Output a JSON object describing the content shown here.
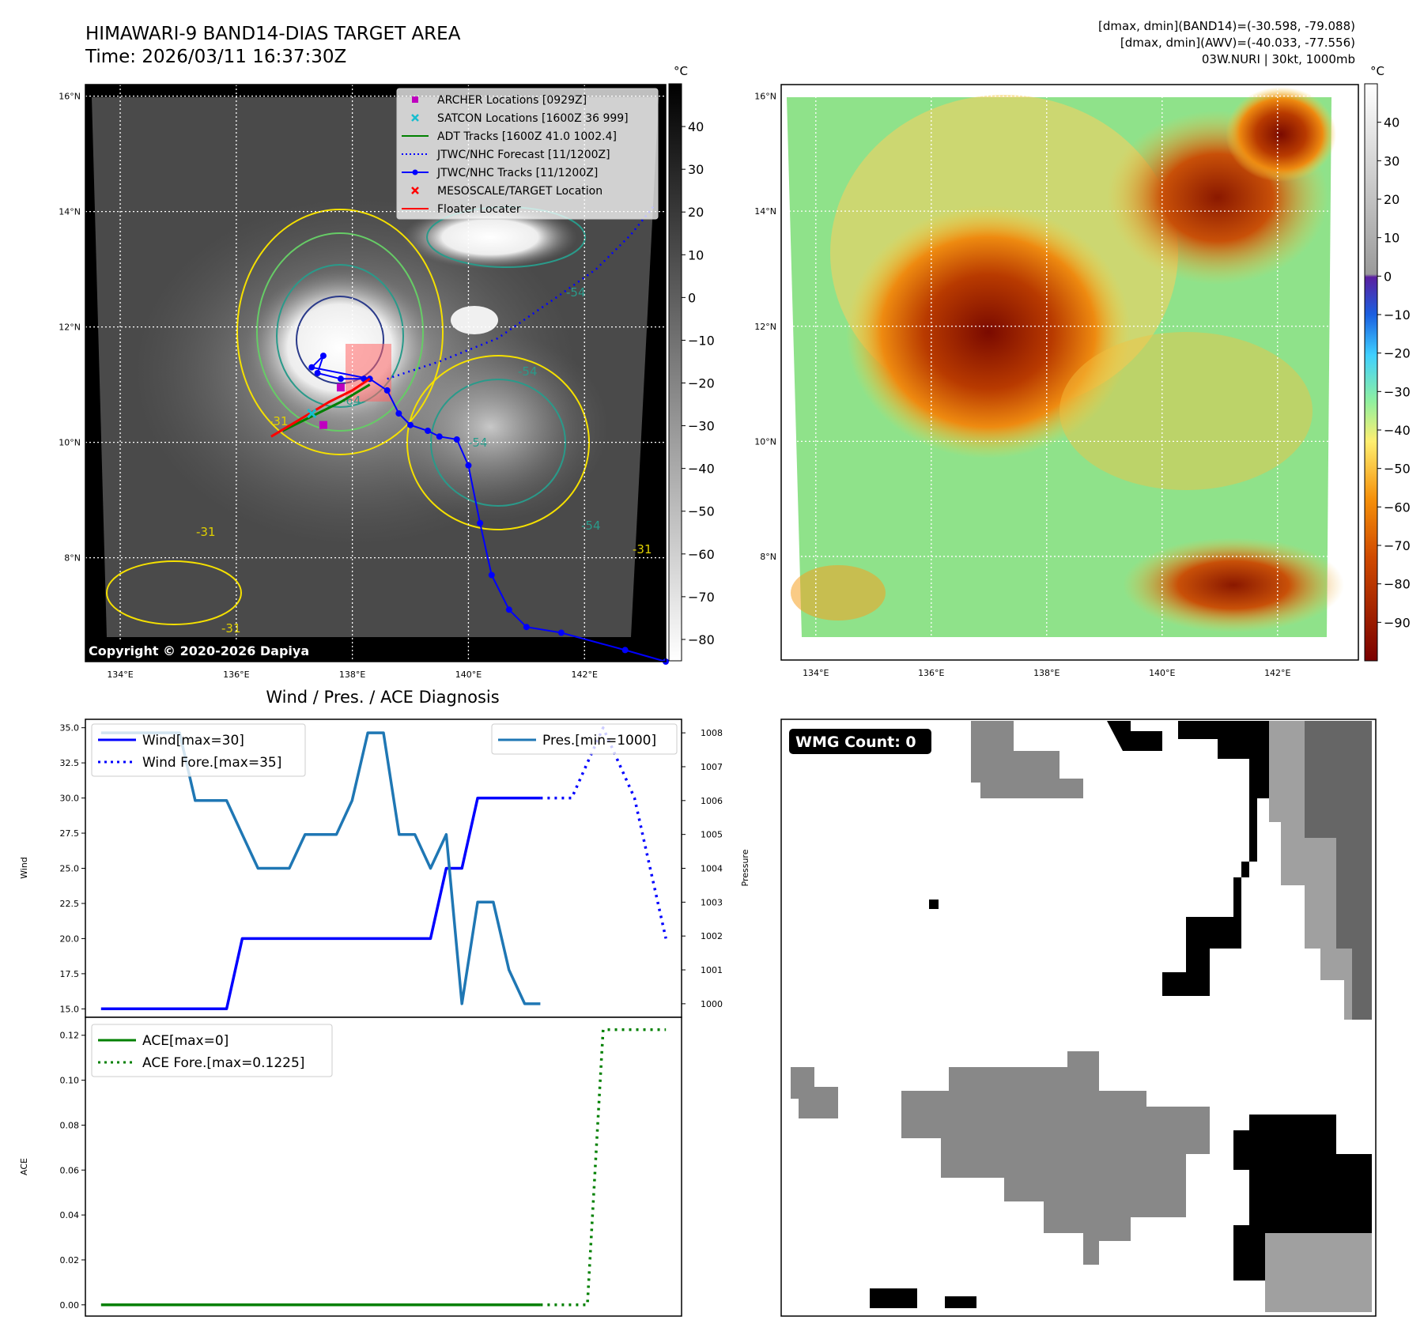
{
  "header": {
    "title_line1": "HIMAWARI-9 BAND14-DIAS TARGET AREA",
    "title_line2": "Time: 2026/03/11 16:37:30Z",
    "info_line1": "[dmax, dmin](BAND14)=(-30.598, -79.088)",
    "info_line2": "[dmax, dmin](AWV)=(-40.033, -77.556)",
    "info_line3": "03W.NURI | 30kt, 1000mb"
  },
  "map_axes": {
    "lat_ticks": [
      "16°N",
      "14°N",
      "12°N",
      "10°N",
      "8°N"
    ],
    "lat_values": [
      16,
      14,
      12,
      10,
      8
    ],
    "lon_ticks": [
      "134°E",
      "136°E",
      "138°E",
      "140°E",
      "142°E"
    ],
    "lon_values": [
      134,
      136,
      138,
      140,
      142
    ],
    "lon_range": [
      133.4,
      143.4
    ],
    "lat_range": [
      6.2,
      16.2
    ]
  },
  "ir_panel": {
    "copyright": "Copyright © 2020-2026 Dapiya",
    "colorbar_unit": "°C",
    "colorbar_ticks": [
      "40",
      "30",
      "20",
      "10",
      "0",
      "−10",
      "−20",
      "−30",
      "−40",
      "−50",
      "−60",
      "−70",
      "−80"
    ],
    "colorbar_values": [
      40,
      30,
      20,
      10,
      0,
      -10,
      -20,
      -30,
      -40,
      -50,
      -60,
      -70,
      -80
    ],
    "colorbar_range": [
      -85,
      50
    ],
    "contour_labels": [
      "-31",
      "-54",
      "-64",
      "-54",
      "-54",
      "-31",
      "-31",
      "-54",
      "-31"
    ],
    "legend": [
      {
        "label": "ARCHER Locations [0929Z]",
        "color": "#bf00bf",
        "marker": "square"
      },
      {
        "label": "SATCON Locations [1600Z 36 999]",
        "color": "#17becf",
        "marker": "x"
      },
      {
        "label": "ADT Tracks [1600Z 41.0 1002.4]",
        "color": "#008000",
        "marker": "line"
      },
      {
        "label": "JTWC/NHC Forecast [11/1200Z]",
        "color": "#0000ff",
        "marker": "dotted"
      },
      {
        "label": "JTWC/NHC Tracks [11/1200Z]",
        "color": "#0000ff",
        "marker": "line-dot"
      },
      {
        "label": "MESOSCALE/TARGET Location",
        "color": "#ff0000",
        "marker": "x"
      },
      {
        "label": "Floater Locater",
        "color": "#ff0000",
        "marker": "line"
      }
    ],
    "jtwc_track": [
      [
        138.2,
        11.1
      ],
      [
        137.8,
        11.1
      ],
      [
        137.4,
        11.2
      ],
      [
        137.5,
        11.5
      ],
      [
        137.3,
        11.3
      ],
      [
        138.3,
        11.1
      ],
      [
        138.6,
        10.9
      ],
      [
        138.8,
        10.5
      ],
      [
        139.0,
        10.3
      ],
      [
        139.3,
        10.2
      ],
      [
        139.5,
        10.1
      ],
      [
        139.8,
        10.05
      ],
      [
        140.0,
        9.6
      ],
      [
        140.2,
        8.6
      ],
      [
        140.4,
        7.7
      ],
      [
        140.7,
        7.1
      ],
      [
        141.0,
        6.8
      ],
      [
        141.6,
        6.7
      ],
      [
        142.7,
        6.4
      ],
      [
        143.4,
        6.2
      ]
    ],
    "jtwc_forecast": [
      [
        138.6,
        11.1
      ],
      [
        139.5,
        11.4
      ],
      [
        140.5,
        11.8
      ],
      [
        141.5,
        12.5
      ],
      [
        142.2,
        13.0
      ],
      [
        142.8,
        13.6
      ],
      [
        143.2,
        14.1
      ]
    ],
    "adt_track": [
      [
        136.8,
        10.2
      ],
      [
        137.2,
        10.4
      ],
      [
        137.8,
        10.7
      ],
      [
        138.3,
        11.0
      ]
    ],
    "floater_track": [
      [
        136.6,
        10.1
      ],
      [
        137.1,
        10.4
      ],
      [
        137.6,
        10.7
      ],
      [
        138.0,
        10.9
      ],
      [
        138.3,
        11.1
      ]
    ],
    "archer_points": [
      [
        137.5,
        10.3
      ],
      [
        137.8,
        10.95
      ]
    ],
    "satcon_point": [
      137.3,
      10.5
    ],
    "target_box": {
      "lon_min": 137.8,
      "lon_max": 138.8,
      "lat_min": 10.5,
      "lat_max": 11.5
    }
  },
  "wv_panel": {
    "colorbar_unit": "°C",
    "colorbar_ticks": [
      "40",
      "30",
      "20",
      "10",
      "0",
      "−10",
      "−20",
      "−30",
      "−40",
      "−50",
      "−60",
      "−70",
      "−80",
      "−90"
    ],
    "colorbar_values": [
      40,
      30,
      20,
      10,
      0,
      -10,
      -20,
      -30,
      -40,
      -50,
      -60,
      -70,
      -80,
      -90
    ],
    "colorbar_range": [
      -100,
      50
    ]
  },
  "wmg_panel": {
    "label": "WMG Count: 0"
  },
  "chart_data": [
    {
      "type": "line",
      "title": "Wind / Pres. / ACE Diagnosis",
      "ylabel": "Wind",
      "ylabel_right": "Pressure",
      "xlim": [
        -1,
        37
      ],
      "ylim": [
        14.4,
        35.6
      ],
      "ylim_right": [
        999.6,
        1008.4
      ],
      "yticks": [
        "35.0",
        "32.5",
        "30.0",
        "27.5",
        "25.0",
        "22.5",
        "20.0",
        "17.5",
        "15.0"
      ],
      "ytick_values": [
        35,
        32.5,
        30,
        27.5,
        25,
        22.5,
        20,
        17.5,
        15
      ],
      "yticks_right": [
        "1008",
        "1007",
        "1006",
        "1005",
        "1004",
        "1003",
        "1002",
        "1001",
        "1000"
      ],
      "ytick_values_right": [
        1008,
        1007,
        1006,
        1005,
        1004,
        1003,
        1002,
        1001,
        1000
      ],
      "legend_left": [
        "Wind[max=30]",
        "Wind Fore.[max=35]"
      ],
      "legend_right": [
        "Pres.[min=1000]"
      ],
      "series": [
        {
          "name": "Wind[max=30]",
          "color": "#0000ff",
          "style": "solid",
          "axis": "left",
          "x": [
            0,
            1,
            2,
            3,
            4,
            5,
            6,
            7,
            8,
            9,
            10,
            11,
            12,
            13,
            14,
            15,
            16,
            17,
            18,
            19,
            20,
            21,
            22,
            23,
            24,
            25,
            26,
            27,
            28
          ],
          "y": [
            15,
            15,
            15,
            15,
            15,
            15,
            15,
            15,
            15,
            20,
            20,
            20,
            20,
            20,
            20,
            20,
            20,
            20,
            20,
            20,
            20,
            20,
            25,
            25,
            30,
            30,
            30,
            30,
            30
          ]
        },
        {
          "name": "Wind Fore.[max=35]",
          "color": "#0000ff",
          "style": "dotted",
          "axis": "left",
          "x": [
            28,
            29,
            30,
            31,
            32,
            33,
            34,
            35,
            36
          ],
          "y": [
            30,
            30,
            30,
            32.5,
            35,
            32.5,
            30,
            25,
            20
          ]
        },
        {
          "name": "Pres.[min=1000]",
          "color": "#1f77b4",
          "style": "solid",
          "axis": "right",
          "x": [
            0,
            1,
            2,
            3,
            4,
            5,
            6,
            7,
            8,
            9,
            10,
            11,
            12,
            13,
            14,
            15,
            16,
            17,
            18,
            19,
            20,
            21,
            22,
            23,
            24,
            25,
            26,
            27,
            28
          ],
          "y": [
            1008,
            1008,
            1008,
            1008,
            1008,
            1008,
            1006,
            1006,
            1006,
            1005,
            1004,
            1004,
            1004,
            1005,
            1005,
            1005,
            1006,
            1008,
            1008,
            1005,
            1005,
            1004,
            1005,
            1000,
            1003,
            1003,
            1001,
            1000,
            1000
          ]
        }
      ]
    },
    {
      "type": "line",
      "ylabel": "ACE",
      "xlim": [
        -1,
        37
      ],
      "ylim": [
        -0.005,
        0.128
      ],
      "yticks": [
        "0.12",
        "0.10",
        "0.08",
        "0.06",
        "0.04",
        "0.02",
        "0.00"
      ],
      "ytick_values": [
        0.12,
        0.1,
        0.08,
        0.06,
        0.04,
        0.02,
        0.0
      ],
      "legend": [
        "ACE[max=0]",
        "ACE Fore.[max=0.1225]"
      ],
      "series": [
        {
          "name": "ACE[max=0]",
          "color": "#008000",
          "style": "solid",
          "x": [
            0,
            28
          ],
          "y": [
            0,
            0
          ]
        },
        {
          "name": "ACE Fore.[max=0.1225]",
          "color": "#008000",
          "style": "dotted",
          "x": [
            28,
            31,
            32,
            36
          ],
          "y": [
            0,
            0,
            0.1225,
            0.1225
          ]
        }
      ]
    }
  ]
}
